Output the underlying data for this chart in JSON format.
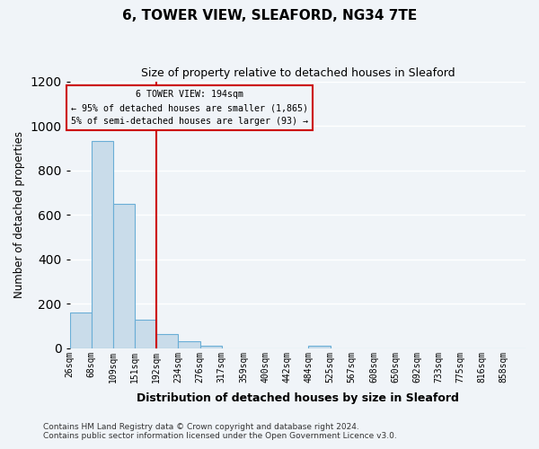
{
  "title": "6, TOWER VIEW, SLEAFORD, NG34 7TE",
  "subtitle": "Size of property relative to detached houses in Sleaford",
  "xlabel": "Distribution of detached houses by size in Sleaford",
  "ylabel": "Number of detached properties",
  "bar_labels": [
    "26sqm",
    "68sqm",
    "109sqm",
    "151sqm",
    "192sqm",
    "234sqm",
    "276sqm",
    "317sqm",
    "359sqm",
    "400sqm",
    "442sqm",
    "484sqm",
    "525sqm",
    "567sqm",
    "608sqm",
    "650sqm",
    "692sqm",
    "733sqm",
    "775sqm",
    "816sqm",
    "858sqm"
  ],
  "bar_values": [
    160,
    930,
    650,
    130,
    63,
    30,
    13,
    0,
    0,
    0,
    0,
    13,
    0,
    0,
    0,
    0,
    0,
    0,
    0,
    0,
    0
  ],
  "bar_color": "#c9dcea",
  "bar_edge_color": "#6aaed6",
  "vline_x": 4,
  "vline_color": "#cc0000",
  "annotation_title": "6 TOWER VIEW: 194sqm",
  "annotation_line1": "← 95% of detached houses are smaller (1,865)",
  "annotation_line2": "5% of semi-detached houses are larger (93) →",
  "annotation_box_edge_color": "#cc0000",
  "ylim": [
    0,
    1200
  ],
  "yticks": [
    0,
    200,
    400,
    600,
    800,
    1000,
    1200
  ],
  "footer1": "Contains HM Land Registry data © Crown copyright and database right 2024.",
  "footer2": "Contains public sector information licensed under the Open Government Licence v3.0.",
  "bg_color": "#f0f4f8",
  "grid_color": "#ffffff"
}
